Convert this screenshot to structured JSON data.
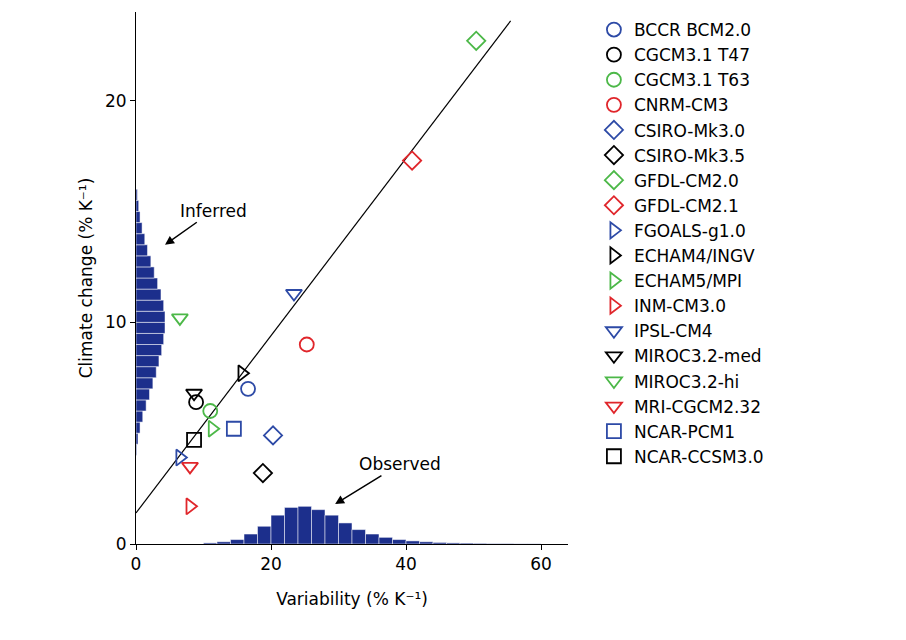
{
  "chart_data": {
    "type": "scatter",
    "x_label": "Variability (% K⁻¹)",
    "y_label": "Climate change (% K⁻¹)",
    "xlim": [
      0,
      64
    ],
    "ylim": [
      0,
      24
    ],
    "xticks": [
      0,
      20,
      40,
      60
    ],
    "yticks": [
      0,
      10,
      20
    ],
    "grid": false,
    "legend": "right",
    "annotations": [
      {
        "text": "Inferred",
        "x": 4.3,
        "y": 13.5
      },
      {
        "text": "Observed",
        "x": 29.5,
        "y": 1.8
      }
    ],
    "series": [
      {
        "type": "histogram",
        "color": "#1c2f8c",
        "bins": [
          10,
          12,
          14,
          16,
          18,
          20,
          22,
          24,
          26,
          28,
          30,
          32,
          34,
          36,
          38,
          40,
          42,
          44,
          46,
          48,
          50,
          52,
          54,
          56,
          58,
          60
        ],
        "values": [
          0.05,
          0.1,
          0.2,
          0.45,
          0.8,
          1.3,
          1.65,
          1.7,
          1.55,
          1.3,
          0.95,
          0.65,
          0.45,
          0.3,
          0.2,
          0.14,
          0.1,
          0.07,
          0.05,
          0.04,
          0.03,
          0.02,
          0.02,
          0.01,
          0.01
        ]
      },
      {
        "type": "histogram",
        "orientation": "horizontal",
        "color": "#1c2f8c",
        "bins": [
          4,
          4.5,
          5,
          5.5,
          6,
          6.5,
          7,
          7.5,
          8,
          8.5,
          9,
          9.5,
          10,
          10.5,
          11,
          11.5,
          12,
          12.5,
          13,
          13.5,
          14,
          14.5,
          15,
          15.5,
          16
        ],
        "values": [
          0.1,
          0.3,
          0.6,
          1.0,
          1.5,
          2.0,
          2.5,
          3.0,
          3.4,
          3.8,
          4.1,
          4.3,
          4.3,
          4.1,
          3.7,
          3.2,
          2.7,
          2.2,
          1.7,
          1.3,
          0.9,
          0.6,
          0.4,
          0.2
        ]
      },
      {
        "type": "line",
        "color": "#000000",
        "line_style": "solid",
        "x": [
          0,
          55.5
        ],
        "values": [
          1.4,
          23.6
        ]
      },
      {
        "name": "BCCR BCM2.0",
        "color": "#2d4aa6",
        "marker": "circle",
        "x": [
          16.6
        ],
        "values": [
          7.0
        ]
      },
      {
        "name": "CGCM3.1 T47",
        "color": "#000000",
        "marker": "circle",
        "x": [
          8.9
        ],
        "values": [
          6.4
        ]
      },
      {
        "name": "CGCM3.1 T63",
        "color": "#4cb848",
        "marker": "circle",
        "x": [
          11.0
        ],
        "values": [
          6.0
        ]
      },
      {
        "name": "CNRM-CM3",
        "color": "#e0262b",
        "marker": "circle",
        "x": [
          25.3
        ],
        "values": [
          9.0
        ]
      },
      {
        "name": "CSIRO-Mk3.0",
        "color": "#2d4aa6",
        "marker": "diamond",
        "x": [
          20.3
        ],
        "values": [
          4.9
        ]
      },
      {
        "name": "CSIRO-Mk3.5",
        "color": "#000000",
        "marker": "diamond",
        "x": [
          18.8
        ],
        "values": [
          3.2
        ]
      },
      {
        "name": "GFDL-CM2.0",
        "color": "#4cb848",
        "marker": "diamond",
        "x": [
          50.4
        ],
        "values": [
          22.7
        ]
      },
      {
        "name": "GFDL-CM2.1",
        "color": "#e0262b",
        "marker": "diamond",
        "x": [
          40.9
        ],
        "values": [
          17.3
        ]
      },
      {
        "name": "FGOALS-g1.0",
        "color": "#2d4aa6",
        "marker": "triangle-right",
        "x": [
          6.5
        ],
        "values": [
          3.9
        ]
      },
      {
        "name": "ECHAM4/INGV",
        "color": "#000000",
        "marker": "triangle-right",
        "x": [
          15.7
        ],
        "values": [
          7.7
        ]
      },
      {
        "name": "ECHAM5/MPI",
        "color": "#4cb848",
        "marker": "triangle-right",
        "x": [
          11.3
        ],
        "values": [
          5.2
        ]
      },
      {
        "name": "INM-CM3.0",
        "color": "#e0262b",
        "marker": "triangle-right",
        "x": [
          8.0
        ],
        "values": [
          1.7
        ]
      },
      {
        "name": "IPSL-CM4",
        "color": "#2d4aa6",
        "marker": "triangle-down",
        "x": [
          23.4
        ],
        "values": [
          11.3
        ]
      },
      {
        "name": "MIROC3.2-med",
        "color": "#000000",
        "marker": "triangle-down",
        "x": [
          8.6
        ],
        "values": [
          6.8
        ]
      },
      {
        "name": "MIROC3.2-hi",
        "color": "#4cb848",
        "marker": "triangle-down",
        "x": [
          6.5
        ],
        "values": [
          10.2
        ]
      },
      {
        "name": "MRI-CGCM2.32",
        "color": "#e0262b",
        "marker": "triangle-down",
        "x": [
          8.0
        ],
        "values": [
          3.5
        ]
      },
      {
        "name": "NCAR-PCM1",
        "color": "#2d4aa6",
        "marker": "square",
        "x": [
          14.5
        ],
        "values": [
          5.2
        ]
      },
      {
        "name": "NCAR-CCSM3.0",
        "color": "#000000",
        "marker": "square",
        "x": [
          8.6
        ],
        "values": [
          4.7
        ]
      }
    ]
  }
}
